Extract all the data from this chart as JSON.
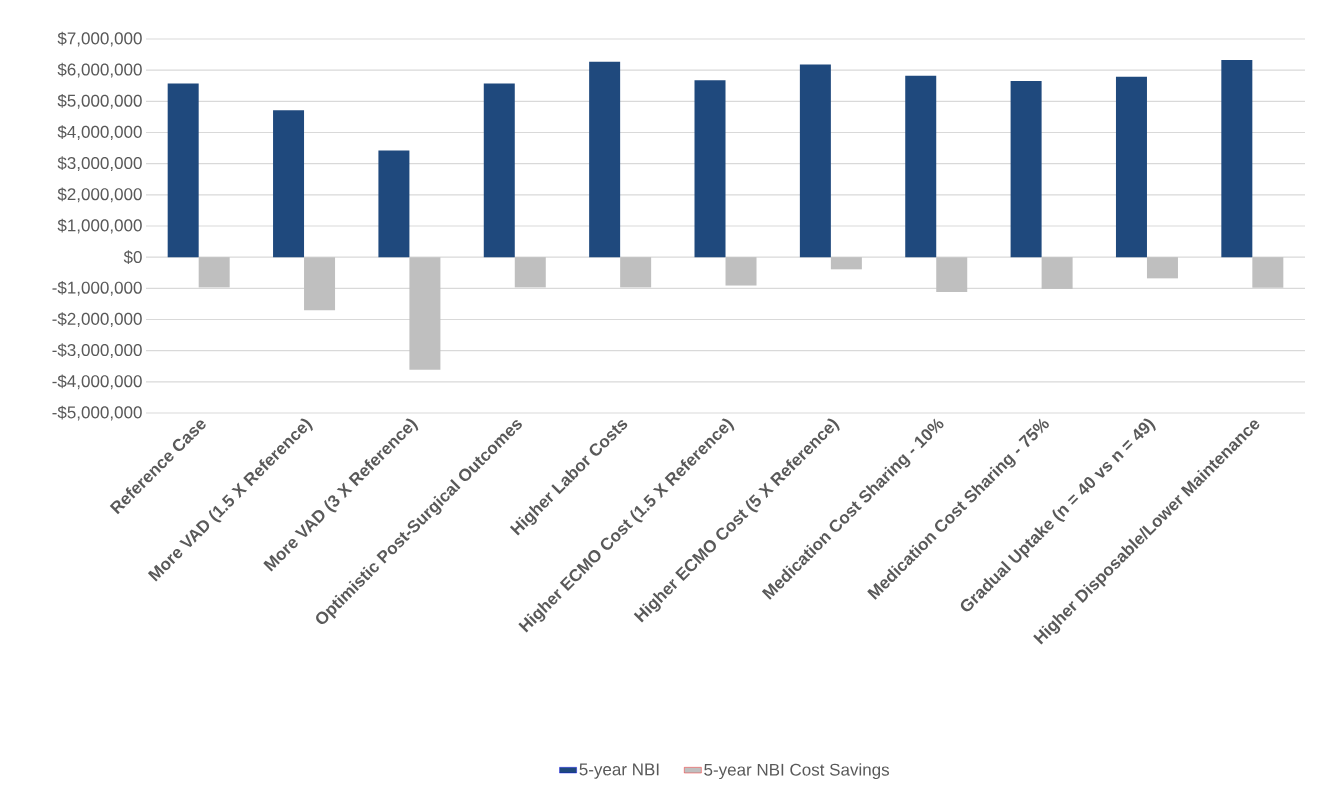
{
  "chart_data": {
    "type": "bar",
    "categories": [
      "Reference Case",
      "More VAD (1.5 X Reference)",
      "More VAD (3 X Reference)",
      "Optimistic Post-Surgical Outcomes",
      "Higher Labor Costs",
      "Higher ECMO Cost (1.5 X Reference)",
      "Higher ECMO Cost (5 X Reference)",
      "Medication Cost Sharing - 10%",
      "Medication Cost Sharing - 75%",
      "Gradual Uptake (n = 40 vs n = 49)",
      "Higher Disposable/Lower Maintenance"
    ],
    "series": [
      {
        "name": "5-year NBI",
        "color": "#1f497d",
        "values": [
          5570000,
          4710000,
          3420000,
          5570000,
          6270000,
          5680000,
          6180000,
          5820000,
          5650000,
          5790000,
          6330000
        ]
      },
      {
        "name": "5-year NBI Cost Savings",
        "color": "#bfbfbf",
        "values": [
          -970000,
          -1700000,
          -3610000,
          -970000,
          -970000,
          -910000,
          -390000,
          -1120000,
          -1020000,
          -680000,
          -980000
        ]
      }
    ],
    "ylim": [
      -5000000,
      7000000
    ],
    "yticks": [
      {
        "value": -5000000,
        "label": "-$5,000,000"
      },
      {
        "value": -4000000,
        "label": "-$4,000,000"
      },
      {
        "value": -3000000,
        "label": "-$3,000,000"
      },
      {
        "value": -2000000,
        "label": "-$2,000,000"
      },
      {
        "value": -1000000,
        "label": "-$1,000,000"
      },
      {
        "value": 0,
        "label": "$0"
      },
      {
        "value": 1000000,
        "label": "$1,000,000"
      },
      {
        "value": 2000000,
        "label": "$2,000,000"
      },
      {
        "value": 3000000,
        "label": "$3,000,000"
      },
      {
        "value": 4000000,
        "label": "$4,000,000"
      },
      {
        "value": 5000000,
        "label": "$5,000,000"
      },
      {
        "value": 6000000,
        "label": "$6,000,000"
      },
      {
        "value": 7000000,
        "label": "$7,000,000"
      }
    ],
    "grid": "y",
    "legend": "bottom"
  }
}
